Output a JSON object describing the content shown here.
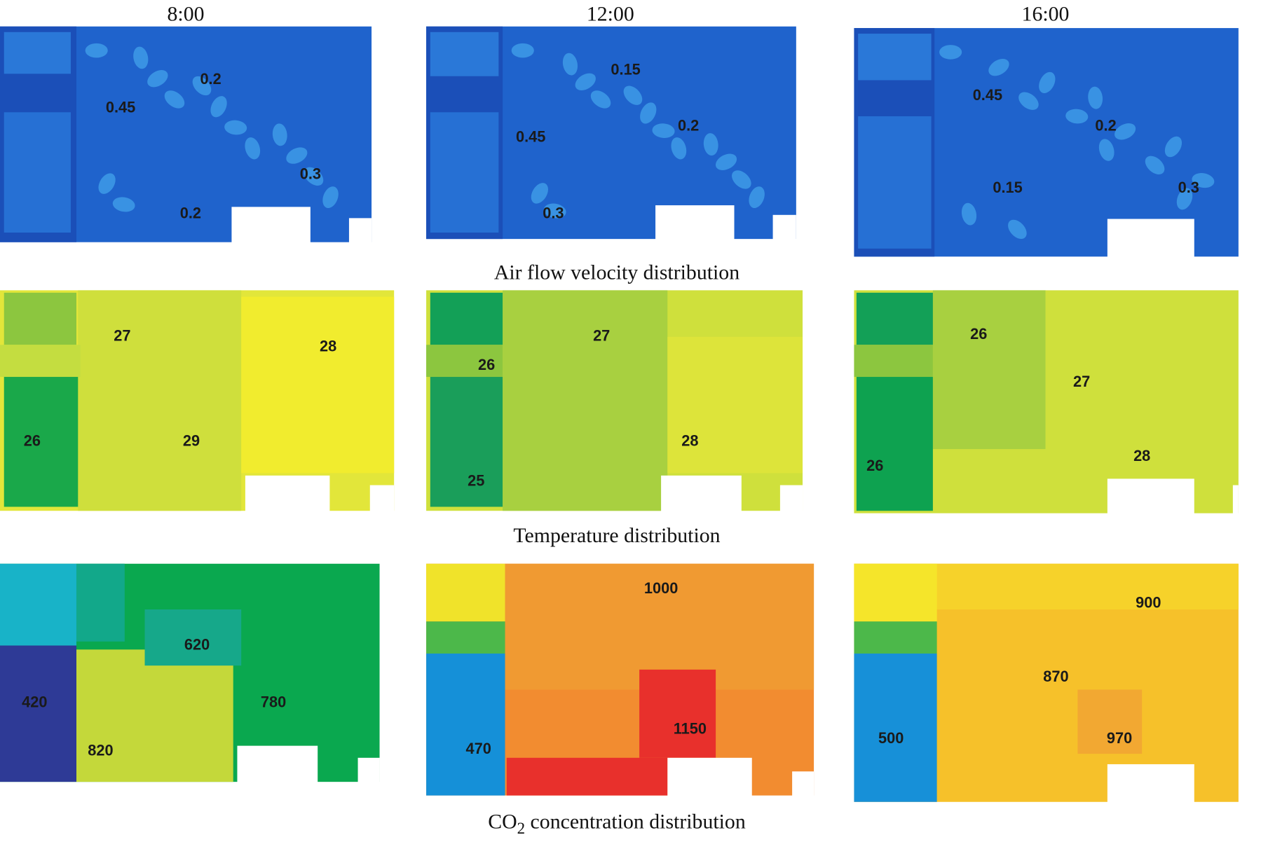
{
  "headers": [
    "8:00",
    "12:00",
    "16:00"
  ],
  "rows": [
    {
      "caption": [
        "Air flow velocity distribution"
      ],
      "panels": [
        {
          "labels": [
            0.2,
            0.45,
            0.3,
            0.2
          ]
        },
        {
          "labels": [
            0.15,
            0.45,
            0.2,
            0.3
          ]
        },
        {
          "labels": [
            0.45,
            0.2,
            0.15,
            0.3
          ]
        }
      ]
    },
    {
      "caption": [
        "Temperature distribution"
      ],
      "panels": [
        {
          "labels": [
            27,
            28,
            26,
            29
          ]
        },
        {
          "labels": [
            27,
            26,
            28,
            25
          ]
        },
        {
          "labels": [
            26,
            27,
            28,
            26
          ]
        }
      ]
    },
    {
      "caption": [
        "CO",
        "2",
        " concentration distribution"
      ],
      "panels": [
        {
          "labels": [
            620,
            420,
            780,
            820
          ]
        },
        {
          "labels": [
            1000,
            1150,
            470
          ]
        },
        {
          "labels": [
            900,
            870,
            500,
            970
          ]
        }
      ]
    }
  ]
}
